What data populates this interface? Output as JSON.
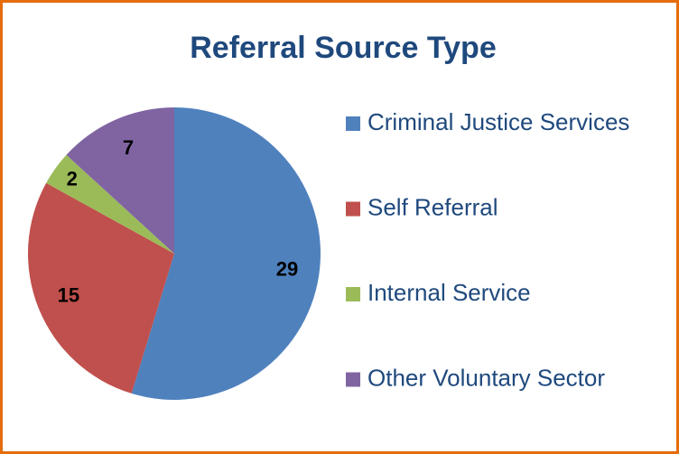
{
  "chart_data": {
    "type": "pie",
    "title": "Referral Source Type",
    "categories": [
      "Criminal Justice Services",
      "Self Referral",
      "Internal Service",
      "Other Voluntary Sector"
    ],
    "values": [
      29,
      15,
      2,
      7
    ],
    "colors": [
      "#4f81bd",
      "#c0504d",
      "#9bbb59",
      "#8064a2"
    ],
    "legend": "right"
  }
}
